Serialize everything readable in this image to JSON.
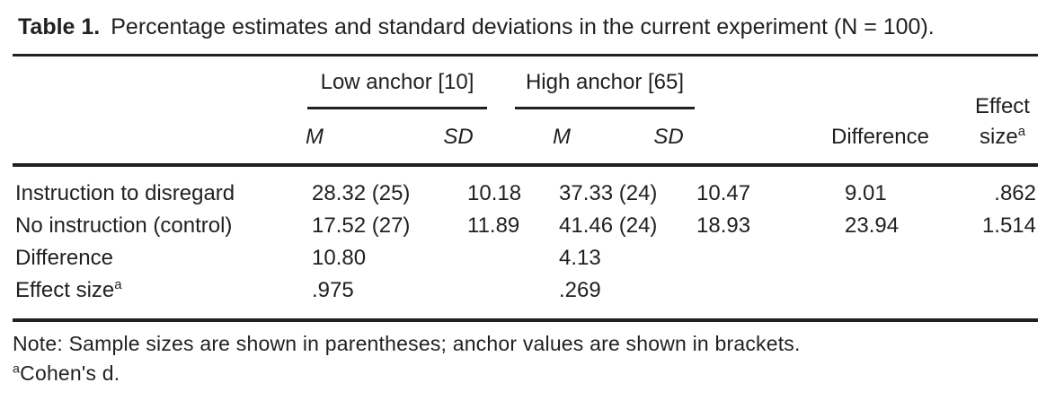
{
  "title": {
    "label": "Table 1.",
    "text": "Percentage estimates and standard deviations in the current experiment (N = 100)."
  },
  "table": {
    "spanners": [
      {
        "label": "Low anchor [10]"
      },
      {
        "label": "High anchor [65]"
      }
    ],
    "columns": {
      "low_m": "M",
      "low_sd": "SD",
      "high_m": "M",
      "high_sd": "SD",
      "difference": "Difference",
      "effect_line1": "Effect",
      "effect_line2": "size",
      "effect_sup": "a"
    },
    "rows": [
      {
        "label": "Instruction to disregard",
        "low_m": "28.32 (25)",
        "low_sd": "10.18",
        "high_m": "37.33 (24)",
        "high_sd": "10.47",
        "difference": "9.01",
        "effect_size": ".862"
      },
      {
        "label": "No instruction (control)",
        "low_m": "17.52 (27)",
        "low_sd": "11.89",
        "high_m": "41.46 (24)",
        "high_sd": "18.93",
        "difference": "23.94",
        "effect_size": "1.514"
      },
      {
        "label": "Difference",
        "low_m": "10.80",
        "high_m": "4.13"
      },
      {
        "label": "Effect size",
        "label_sup": "a",
        "low_m": ".975",
        "high_m": ".269"
      }
    ]
  },
  "notes": {
    "note": "Note: Sample sizes are shown in parentheses; anchor values are shown in brackets.",
    "footnote_sup": "a",
    "footnote": "Cohen's d."
  },
  "colors": {
    "text": "#231f20",
    "rule": "#231f20",
    "background": "#ffffff"
  }
}
